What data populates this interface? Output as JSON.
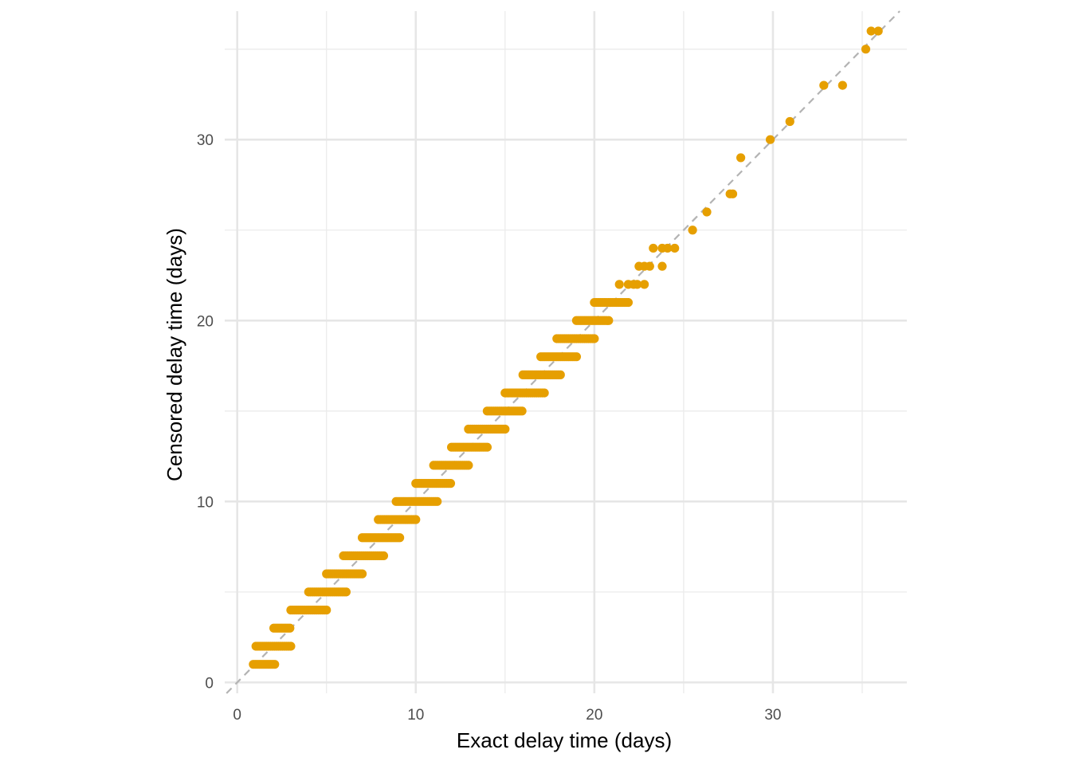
{
  "chart_data": {
    "type": "scatter",
    "title": "",
    "xlabel": "Exact delay time (days)",
    "ylabel": "Censored delay time (days)",
    "xlim": [
      -0.7,
      37.5
    ],
    "ylim": [
      -0.6,
      37.1
    ],
    "x_ticks": [
      0,
      10,
      20,
      30
    ],
    "y_ticks": [
      0,
      10,
      20,
      30
    ],
    "x_minor_gridlines": [
      5,
      15,
      25,
      35
    ],
    "y_minor_gridlines": [
      5,
      15,
      25,
      35
    ],
    "grid": true,
    "legend": "none",
    "reference_line": {
      "type": "identity",
      "style": "dashed",
      "color": "#b3b3b3"
    },
    "point_color": "#E69F00",
    "series": [
      {
        "point_color": "#E69F00",
        "clusters": [
          {
            "y": 1,
            "x_min": 0.9,
            "x_max": 2.1
          },
          {
            "y": 2,
            "x_min": 1.05,
            "x_max": 3.0
          },
          {
            "y": 3,
            "x_min": 2.05,
            "x_max": 2.95
          },
          {
            "y": 4,
            "x_min": 3.0,
            "x_max": 5.0
          },
          {
            "y": 5,
            "x_min": 4.0,
            "x_max": 6.1
          },
          {
            "y": 6,
            "x_min": 5.0,
            "x_max": 7.0
          },
          {
            "y": 7,
            "x_min": 5.95,
            "x_max": 8.2
          },
          {
            "y": 8,
            "x_min": 7.0,
            "x_max": 9.1
          },
          {
            "y": 9,
            "x_min": 7.9,
            "x_max": 10.0
          },
          {
            "y": 10,
            "x_min": 8.9,
            "x_max": 11.2
          },
          {
            "y": 11,
            "x_min": 10.0,
            "x_max": 11.95
          },
          {
            "y": 12,
            "x_min": 11.0,
            "x_max": 12.95
          },
          {
            "y": 13,
            "x_min": 12.0,
            "x_max": 14.0
          },
          {
            "y": 14,
            "x_min": 12.95,
            "x_max": 15.0
          },
          {
            "y": 15,
            "x_min": 14.0,
            "x_max": 15.95
          },
          {
            "y": 16,
            "x_min": 15.0,
            "x_max": 17.2
          },
          {
            "y": 17,
            "x_min": 16.0,
            "x_max": 18.1
          },
          {
            "y": 18,
            "x_min": 17.0,
            "x_max": 19.0
          },
          {
            "y": 19,
            "x_min": 17.9,
            "x_max": 20.0
          },
          {
            "y": 20,
            "x_min": 19.0,
            "x_max": 20.8
          },
          {
            "y": 21,
            "x_min": 20.0,
            "x_max": 21.9
          }
        ],
        "points": [
          [
            21.4,
            22
          ],
          [
            21.9,
            22
          ],
          [
            22.2,
            22
          ],
          [
            22.4,
            22
          ],
          [
            22.8,
            22
          ],
          [
            22.5,
            23
          ],
          [
            22.8,
            23
          ],
          [
            23.1,
            23
          ],
          [
            23.8,
            23
          ],
          [
            23.3,
            24
          ],
          [
            23.8,
            24
          ],
          [
            24.1,
            24
          ],
          [
            24.5,
            24
          ],
          [
            25.5,
            25
          ],
          [
            26.3,
            26
          ],
          [
            27.6,
            27
          ],
          [
            27.75,
            27
          ],
          [
            28.2,
            29
          ],
          [
            29.85,
            30
          ],
          [
            30.95,
            31
          ],
          [
            32.85,
            33
          ],
          [
            33.9,
            33
          ],
          [
            35.2,
            35
          ],
          [
            35.5,
            36
          ],
          [
            35.9,
            36
          ]
        ]
      }
    ]
  }
}
